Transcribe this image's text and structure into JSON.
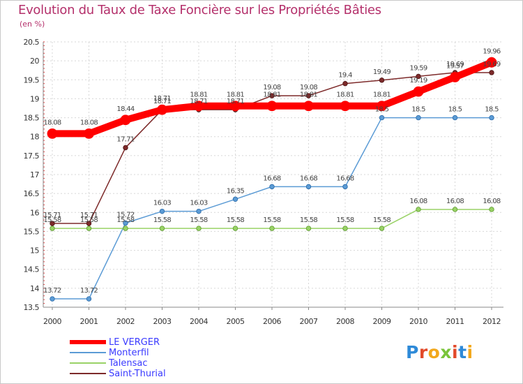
{
  "header": {
    "title": "Evolution du Taux de Taxe Foncière sur les Propriétés Bâties",
    "unit": "(en %)"
  },
  "logo": {
    "text": "Proxiti",
    "colors": [
      "#2e8ad8",
      "#e24a2a",
      "#f2a81c",
      "#7ac43a",
      "#e24a2a",
      "#2e8ad8",
      "#f2a81c"
    ]
  },
  "chart_data": {
    "type": "line",
    "title": "Evolution du Taux de Taxe Foncière sur les Propriétés Bâties",
    "ylabel": "(en %)",
    "xlabel": "",
    "categories": [
      "2000",
      "2001",
      "2002",
      "2003",
      "2004",
      "2005",
      "2006",
      "2007",
      "2008",
      "2009",
      "2010",
      "2011",
      "2012"
    ],
    "ylim": [
      13.5,
      20.5
    ],
    "yticks": [
      "13.5",
      "14",
      "14.5",
      "15",
      "15.5",
      "16",
      "16.5",
      "17",
      "17.5",
      "18",
      "18.5",
      "19",
      "19.5",
      "20",
      "20.5"
    ],
    "grid": true,
    "legend_position": "bottom-left",
    "series": [
      {
        "name": "LE VERGER",
        "color": "#ff0000",
        "values": [
          18.08,
          18.08,
          18.44,
          18.71,
          18.81,
          18.81,
          18.81,
          18.81,
          18.81,
          18.81,
          19.19,
          19.57,
          19.96
        ],
        "labels": [
          "18.08",
          "18.08",
          "18.44",
          "18.71",
          "18.81",
          "18.81",
          "18.81",
          "18.81",
          "18.81",
          "18.81",
          "19.19",
          "19.57",
          "19.96"
        ]
      },
      {
        "name": "Monterfil",
        "color": "#5b9bd5",
        "values": [
          13.72,
          13.72,
          15.72,
          16.03,
          16.03,
          16.35,
          16.68,
          16.68,
          16.68,
          18.5,
          18.5,
          18.5,
          18.5
        ],
        "labels": [
          "13.72",
          "13.72",
          "15.72",
          "16.03",
          "16.03",
          "16.35",
          "16.68",
          "16.68",
          "16.68",
          "18.5",
          "18.5",
          "18.5",
          "18.5"
        ]
      },
      {
        "name": "Talensac",
        "color": "#99d266",
        "values": [
          15.58,
          15.58,
          15.58,
          15.58,
          15.58,
          15.58,
          15.58,
          15.58,
          15.58,
          15.58,
          16.08,
          16.08,
          16.08
        ],
        "labels": [
          "15.58",
          "15.58",
          "15.58",
          "15.58",
          "15.58",
          "15.58",
          "15.58",
          "15.58",
          "15.58",
          "15.58",
          "16.08",
          "16.08",
          "16.08"
        ]
      },
      {
        "name": "Saint-Thurial",
        "color": "#7d2a2a",
        "values": [
          15.71,
          15.71,
          17.71,
          18.71,
          18.71,
          18.71,
          19.08,
          19.08,
          19.4,
          19.49,
          19.59,
          19.69,
          19.69
        ],
        "labels": [
          "15.71",
          "15.71",
          "17.71",
          "18.71",
          "18.71",
          "18.71",
          "19.08",
          "19.08",
          "19.4",
          "19.49",
          "19.59",
          "19.69",
          "19.69"
        ]
      }
    ]
  }
}
